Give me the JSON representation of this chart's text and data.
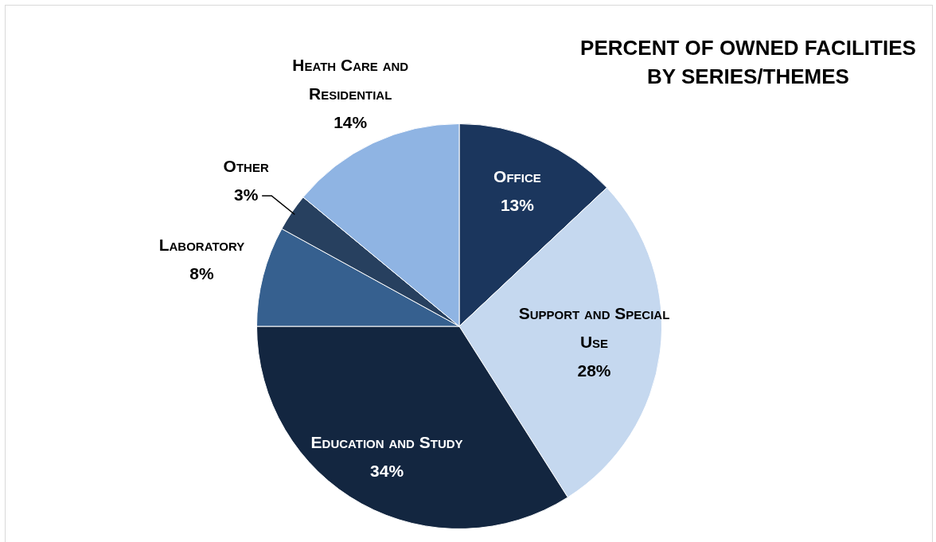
{
  "chart_data": {
    "type": "pie",
    "title": "PERCENT OF OWNED FACILITIES BY SERIES/THEMES",
    "categories": [
      "Office",
      "Support and Special Use",
      "Education and Study",
      "Laboratory",
      "Other",
      "Heath Care and Residential"
    ],
    "values": [
      13,
      28,
      34,
      8,
      3,
      14
    ],
    "value_labels": [
      "13%",
      "28%",
      "34%",
      "8%",
      "3%",
      "14%"
    ],
    "colors": [
      "#1b365d",
      "#c5d8ef",
      "#132640",
      "#36608f",
      "#27405f",
      "#8fb4e3"
    ],
    "legend": false
  }
}
